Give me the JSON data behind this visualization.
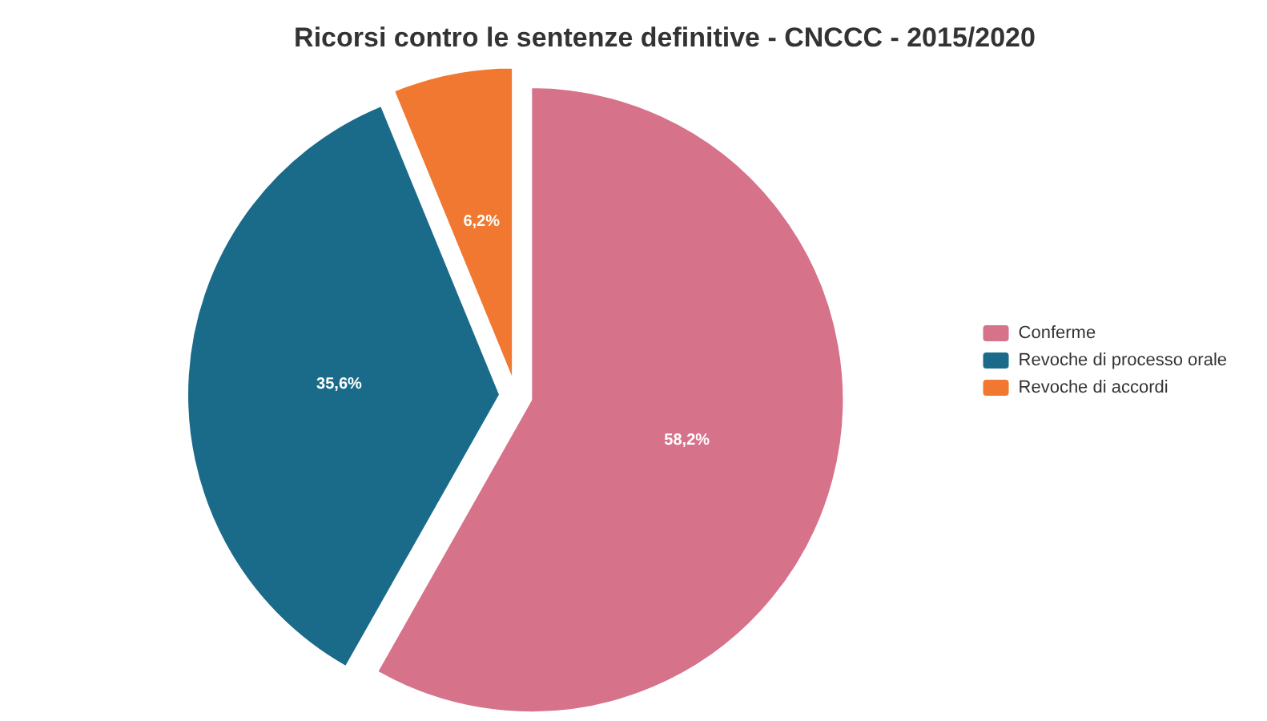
{
  "chart_data": {
    "type": "pie",
    "title": "Ricorsi contro le sentenze definitive - CNCCC - 2015/2020",
    "categories": [
      "Conferme",
      "Revoche di processo orale",
      "Revoche di accordi"
    ],
    "values": [
      58.2,
      35.6,
      6.2
    ],
    "colors": [
      "#d6728a",
      "#1a6a8a",
      "#f07830"
    ],
    "value_labels": [
      "58,2%",
      "35,6%",
      "6,2%"
    ],
    "legend": "right"
  }
}
